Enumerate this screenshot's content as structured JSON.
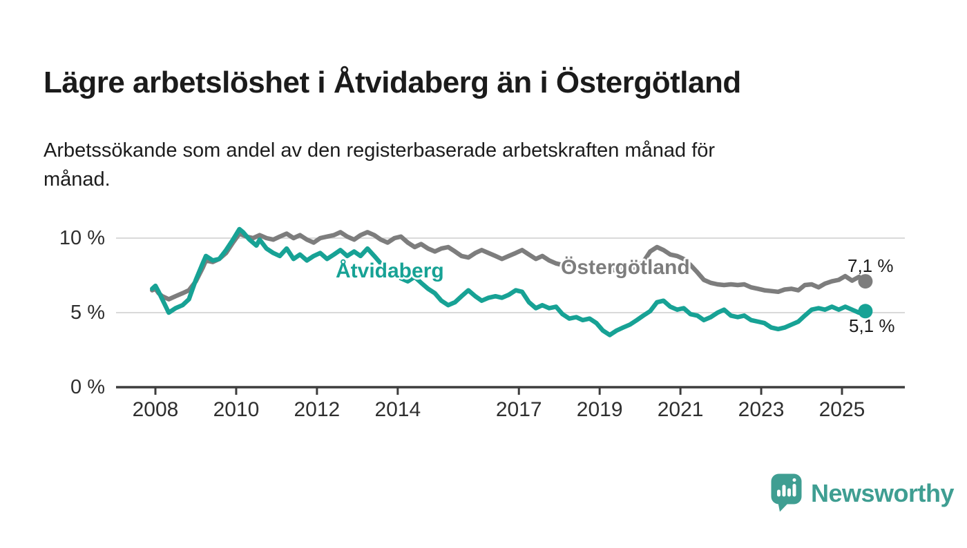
{
  "header": {
    "title": "Lägre arbetslöshet i Åtvidaberg än i Östergötland",
    "subtitle": "Arbetssökande som andel av den registerbaserade arbetskraften månad för månad."
  },
  "chart_data": {
    "type": "line",
    "unit": "%",
    "grid": "horizontal",
    "legend": "inline-labels",
    "axis_color": "#3d3d3d",
    "grid_color": "#d9d9d9",
    "y_axis": {
      "min": 0,
      "max": 12
    },
    "y_ticks": [
      {
        "y": 0,
        "label": "0 %"
      },
      {
        "y": 5,
        "label": "5 %"
      },
      {
        "y": 10,
        "label": "10 %"
      }
    ],
    "x_ticks": [
      {
        "x": 2008,
        "label": "2008"
      },
      {
        "x": 2010,
        "label": "2010"
      },
      {
        "x": 2012,
        "label": "2012"
      },
      {
        "x": 2014,
        "label": "2014"
      },
      {
        "x": 2017,
        "label": "2017"
      },
      {
        "x": 2019,
        "label": "2019"
      },
      {
        "x": 2021,
        "label": "2021"
      },
      {
        "x": 2023,
        "label": "2023"
      },
      {
        "x": 2025,
        "label": "2025"
      }
    ],
    "series": [
      {
        "name": "Östergötland",
        "color": "#7d7d7d",
        "end_label": "7,1 %",
        "end_value": 7.1,
        "points": [
          [
            2007.92,
            6.5
          ],
          [
            2008.0,
            6.6
          ],
          [
            2008.08,
            6.3
          ],
          [
            2008.17,
            6.1
          ],
          [
            2008.33,
            5.9
          ],
          [
            2008.5,
            6.1
          ],
          [
            2008.67,
            6.3
          ],
          [
            2008.83,
            6.5
          ],
          [
            2009.0,
            7.1
          ],
          [
            2009.17,
            8.0
          ],
          [
            2009.25,
            8.5
          ],
          [
            2009.42,
            8.4
          ],
          [
            2009.58,
            8.6
          ],
          [
            2009.75,
            9.0
          ],
          [
            2009.92,
            9.7
          ],
          [
            2010.08,
            10.3
          ],
          [
            2010.25,
            10.1
          ],
          [
            2010.42,
            10.0
          ],
          [
            2010.58,
            10.2
          ],
          [
            2010.75,
            10.0
          ],
          [
            2010.92,
            9.9
          ],
          [
            2011.08,
            10.1
          ],
          [
            2011.25,
            10.3
          ],
          [
            2011.42,
            10.0
          ],
          [
            2011.58,
            10.2
          ],
          [
            2011.75,
            9.9
          ],
          [
            2011.92,
            9.7
          ],
          [
            2012.08,
            10.0
          ],
          [
            2012.25,
            10.1
          ],
          [
            2012.42,
            10.2
          ],
          [
            2012.58,
            10.4
          ],
          [
            2012.75,
            10.1
          ],
          [
            2012.92,
            9.9
          ],
          [
            2013.08,
            10.2
          ],
          [
            2013.25,
            10.4
          ],
          [
            2013.42,
            10.2
          ],
          [
            2013.58,
            9.9
          ],
          [
            2013.75,
            9.7
          ],
          [
            2013.92,
            10.0
          ],
          [
            2014.08,
            10.1
          ],
          [
            2014.25,
            9.7
          ],
          [
            2014.42,
            9.4
          ],
          [
            2014.58,
            9.6
          ],
          [
            2014.75,
            9.3
          ],
          [
            2014.92,
            9.1
          ],
          [
            2015.08,
            9.3
          ],
          [
            2015.25,
            9.4
          ],
          [
            2015.42,
            9.1
          ],
          [
            2015.58,
            8.8
          ],
          [
            2015.75,
            8.7
          ],
          [
            2015.92,
            9.0
          ],
          [
            2016.08,
            9.2
          ],
          [
            2016.25,
            9.0
          ],
          [
            2016.42,
            8.8
          ],
          [
            2016.58,
            8.6
          ],
          [
            2016.75,
            8.8
          ],
          [
            2016.92,
            9.0
          ],
          [
            2017.08,
            9.2
          ],
          [
            2017.25,
            8.9
          ],
          [
            2017.42,
            8.6
          ],
          [
            2017.58,
            8.8
          ],
          [
            2017.75,
            8.5
          ],
          [
            2017.92,
            8.3
          ],
          [
            2018.08,
            8.2
          ],
          [
            2018.25,
            8.3
          ],
          [
            2018.42,
            8.1
          ],
          [
            2018.58,
            8.0
          ],
          [
            2018.75,
            7.9
          ],
          [
            2018.92,
            8.0
          ],
          [
            2019.08,
            7.9
          ],
          [
            2019.25,
            7.8
          ],
          [
            2019.42,
            7.9
          ],
          [
            2019.58,
            8.0
          ],
          [
            2019.75,
            7.9
          ],
          [
            2019.92,
            8.1
          ],
          [
            2020.08,
            8.4
          ],
          [
            2020.25,
            9.1
          ],
          [
            2020.42,
            9.4
          ],
          [
            2020.58,
            9.2
          ],
          [
            2020.75,
            8.9
          ],
          [
            2020.92,
            8.8
          ],
          [
            2021.08,
            8.6
          ],
          [
            2021.25,
            8.2
          ],
          [
            2021.42,
            7.7
          ],
          [
            2021.58,
            7.2
          ],
          [
            2021.75,
            7.0
          ],
          [
            2021.92,
            6.9
          ],
          [
            2022.08,
            6.85
          ],
          [
            2022.25,
            6.9
          ],
          [
            2022.42,
            6.85
          ],
          [
            2022.58,
            6.9
          ],
          [
            2022.75,
            6.7
          ],
          [
            2022.92,
            6.6
          ],
          [
            2023.08,
            6.5
          ],
          [
            2023.25,
            6.45
          ],
          [
            2023.42,
            6.4
          ],
          [
            2023.58,
            6.55
          ],
          [
            2023.75,
            6.6
          ],
          [
            2023.92,
            6.5
          ],
          [
            2024.08,
            6.85
          ],
          [
            2024.25,
            6.9
          ],
          [
            2024.42,
            6.7
          ],
          [
            2024.58,
            6.95
          ],
          [
            2024.75,
            7.1
          ],
          [
            2024.92,
            7.2
          ],
          [
            2025.08,
            7.45
          ],
          [
            2025.25,
            7.15
          ],
          [
            2025.42,
            7.4
          ],
          [
            2025.58,
            7.1
          ]
        ]
      },
      {
        "name": "Åtvidaberg",
        "color": "#17a295",
        "end_label": "5,1 %",
        "end_value": 5.1,
        "points": [
          [
            2007.92,
            6.6
          ],
          [
            2008.0,
            6.8
          ],
          [
            2008.08,
            6.4
          ],
          [
            2008.17,
            5.9
          ],
          [
            2008.33,
            5.0
          ],
          [
            2008.5,
            5.3
          ],
          [
            2008.67,
            5.5
          ],
          [
            2008.83,
            5.9
          ],
          [
            2009.0,
            7.2
          ],
          [
            2009.17,
            8.3
          ],
          [
            2009.25,
            8.8
          ],
          [
            2009.42,
            8.5
          ],
          [
            2009.58,
            8.6
          ],
          [
            2009.75,
            9.2
          ],
          [
            2009.92,
            9.9
          ],
          [
            2010.08,
            10.6
          ],
          [
            2010.17,
            10.4
          ],
          [
            2010.33,
            9.9
          ],
          [
            2010.5,
            9.5
          ],
          [
            2010.58,
            9.9
          ],
          [
            2010.75,
            9.3
          ],
          [
            2010.92,
            9.0
          ],
          [
            2011.08,
            8.8
          ],
          [
            2011.25,
            9.3
          ],
          [
            2011.42,
            8.6
          ],
          [
            2011.58,
            8.9
          ],
          [
            2011.75,
            8.5
          ],
          [
            2011.92,
            8.8
          ],
          [
            2012.08,
            9.0
          ],
          [
            2012.25,
            8.6
          ],
          [
            2012.42,
            8.9
          ],
          [
            2012.58,
            9.2
          ],
          [
            2012.75,
            8.8
          ],
          [
            2012.92,
            9.1
          ],
          [
            2013.08,
            8.8
          ],
          [
            2013.25,
            9.3
          ],
          [
            2013.42,
            8.8
          ],
          [
            2013.58,
            8.3
          ],
          [
            2013.75,
            7.9
          ],
          [
            2013.92,
            7.6
          ],
          [
            2014.08,
            7.3
          ],
          [
            2014.25,
            7.1
          ],
          [
            2014.42,
            7.4
          ],
          [
            2014.58,
            7.0
          ],
          [
            2014.75,
            6.6
          ],
          [
            2014.92,
            6.3
          ],
          [
            2015.08,
            5.8
          ],
          [
            2015.25,
            5.5
          ],
          [
            2015.42,
            5.7
          ],
          [
            2015.58,
            6.1
          ],
          [
            2015.75,
            6.5
          ],
          [
            2015.92,
            6.1
          ],
          [
            2016.08,
            5.8
          ],
          [
            2016.25,
            6.0
          ],
          [
            2016.42,
            6.1
          ],
          [
            2016.58,
            6.0
          ],
          [
            2016.75,
            6.2
          ],
          [
            2016.92,
            6.5
          ],
          [
            2017.08,
            6.4
          ],
          [
            2017.25,
            5.7
          ],
          [
            2017.42,
            5.3
          ],
          [
            2017.58,
            5.5
          ],
          [
            2017.75,
            5.3
          ],
          [
            2017.92,
            5.4
          ],
          [
            2018.08,
            4.9
          ],
          [
            2018.25,
            4.6
          ],
          [
            2018.42,
            4.7
          ],
          [
            2018.58,
            4.5
          ],
          [
            2018.75,
            4.6
          ],
          [
            2018.92,
            4.3
          ],
          [
            2019.08,
            3.8
          ],
          [
            2019.25,
            3.5
          ],
          [
            2019.42,
            3.8
          ],
          [
            2019.58,
            4.0
          ],
          [
            2019.75,
            4.2
          ],
          [
            2019.92,
            4.5
          ],
          [
            2020.08,
            4.8
          ],
          [
            2020.25,
            5.1
          ],
          [
            2020.42,
            5.7
          ],
          [
            2020.58,
            5.8
          ],
          [
            2020.75,
            5.4
          ],
          [
            2020.92,
            5.2
          ],
          [
            2021.08,
            5.3
          ],
          [
            2021.25,
            4.9
          ],
          [
            2021.42,
            4.8
          ],
          [
            2021.58,
            4.5
          ],
          [
            2021.75,
            4.7
          ],
          [
            2021.92,
            5.0
          ],
          [
            2022.08,
            5.2
          ],
          [
            2022.25,
            4.8
          ],
          [
            2022.42,
            4.7
          ],
          [
            2022.58,
            4.8
          ],
          [
            2022.75,
            4.5
          ],
          [
            2022.92,
            4.4
          ],
          [
            2023.08,
            4.3
          ],
          [
            2023.25,
            4.0
          ],
          [
            2023.42,
            3.9
          ],
          [
            2023.58,
            4.0
          ],
          [
            2023.75,
            4.2
          ],
          [
            2023.92,
            4.4
          ],
          [
            2024.08,
            4.8
          ],
          [
            2024.25,
            5.2
          ],
          [
            2024.42,
            5.3
          ],
          [
            2024.58,
            5.2
          ],
          [
            2024.75,
            5.4
          ],
          [
            2024.92,
            5.2
          ],
          [
            2025.08,
            5.4
          ],
          [
            2025.25,
            5.2
          ],
          [
            2025.42,
            5.0
          ],
          [
            2025.5,
            5.3
          ],
          [
            2025.58,
            5.1
          ]
        ]
      }
    ]
  },
  "footer": {
    "brand": "Newsworthy",
    "brand_color": "#3f9e92",
    "logo_icon": "chat-bubble-bar-chart-exclamation-icon"
  }
}
